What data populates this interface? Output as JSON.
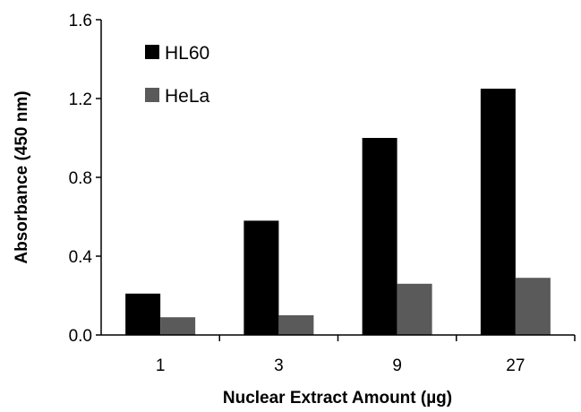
{
  "chart_data": {
    "type": "bar",
    "categories": [
      "1",
      "3",
      "9",
      "27"
    ],
    "series": [
      {
        "name": "HL60",
        "values": [
          0.21,
          0.58,
          1.0,
          1.25
        ],
        "color": "#000000"
      },
      {
        "name": "HeLa",
        "values": [
          0.09,
          0.1,
          0.26,
          0.29
        ],
        "color": "#5a5a5a"
      }
    ],
    "xlabel": "Nuclear Extract Amount (µg)",
    "ylabel": "Absorbance (450 nm)",
    "ylim": [
      0,
      1.6
    ],
    "yticks": [
      "0.0",
      "0.4",
      "0.8",
      "1.2",
      "1.6"
    ],
    "legend_position": "top-left",
    "grid": false
  }
}
